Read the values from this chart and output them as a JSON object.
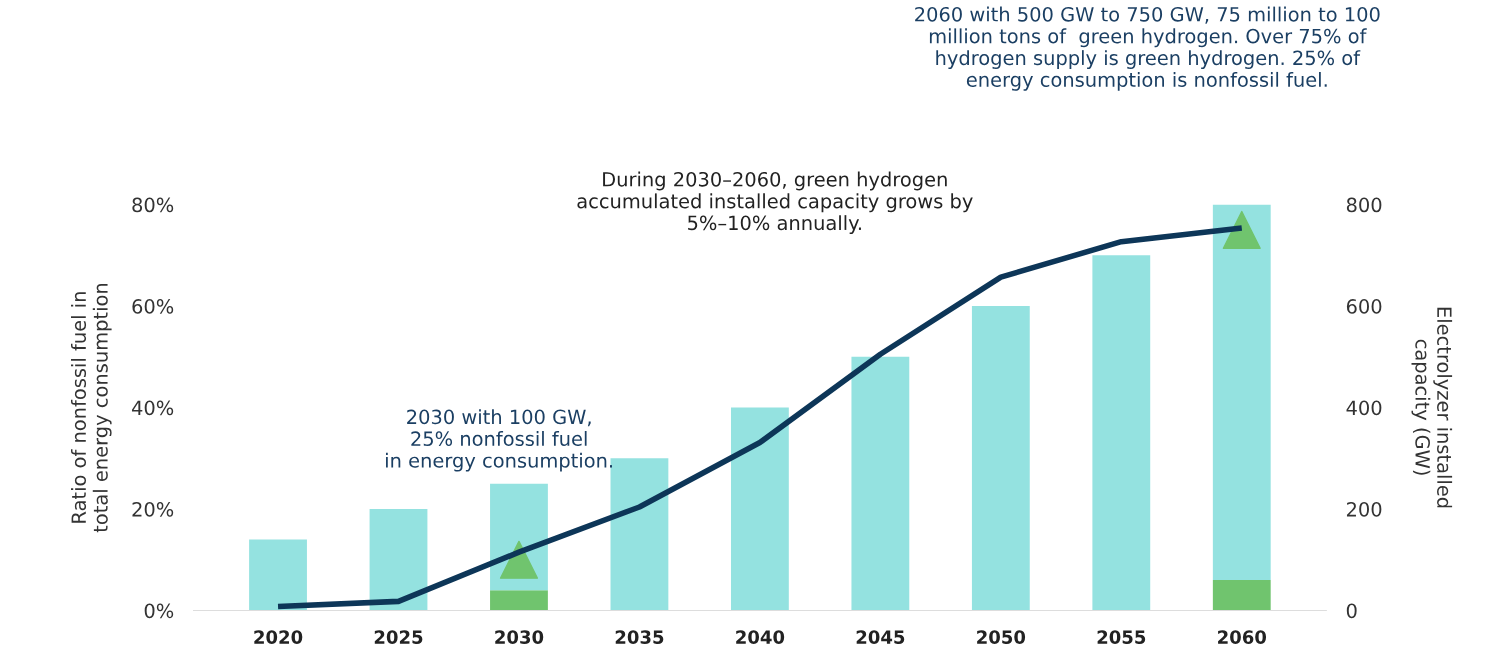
{
  "chart_data": {
    "type": "bar",
    "stacked": true,
    "ylabel": "Ratio of nonfossil fuel in\ntotal energy consumption",
    "y2label": "Electrolyzer installed\ncapacity (GW)",
    "categories": [
      "2020",
      "2025",
      "2030",
      "2035",
      "2040",
      "2045",
      "2050",
      "2055",
      "2060"
    ],
    "series": [
      {
        "color": "#70c46e",
        "values": [
          null,
          null,
          4,
          null,
          null,
          null,
          null,
          null,
          6
        ]
      },
      {
        "color": "#94e2e0",
        "values": [
          14,
          20,
          21,
          30,
          40,
          50,
          60,
          70,
          74
        ]
      },
      {
        "type": "line",
        "axis": "y2",
        "color": "#0d3658",
        "values": [
          8,
          18,
          115,
          204,
          331,
          505,
          657,
          727,
          754
        ]
      },
      {
        "type": "scatter",
        "axis": "y2",
        "marker": "triangle",
        "color": "#70c46e",
        "values": [
          null,
          null,
          100,
          null,
          null,
          null,
          null,
          null,
          750
        ]
      }
    ],
    "ylim": [
      0,
      80
    ],
    "yticks": [
      {
        "value": 0,
        "label": "0%"
      },
      {
        "value": 20,
        "label": "20%"
      },
      {
        "value": 40,
        "label": "40%"
      },
      {
        "value": 60,
        "label": "60%"
      },
      {
        "value": 80,
        "label": "80%"
      }
    ],
    "y2lim": [
      0,
      800
    ],
    "y2ticks": [
      0,
      200,
      400,
      600,
      800
    ],
    "annotations": [
      "2030 with 100 GW,\n25% nonfossil fuel\nin energy consumption.",
      "During 2030–2060, green hydrogen\naccumulated installed capacity grows by\n5%–10% annually.",
      "2060 with 500 GW to 750 GW, 75 million to 100\nmillion tons of  green hydrogen. Over 75% of\nhydrogen supply is green hydrogen. 25% of\nenergy consumption is nonfossil fuel."
    ]
  }
}
